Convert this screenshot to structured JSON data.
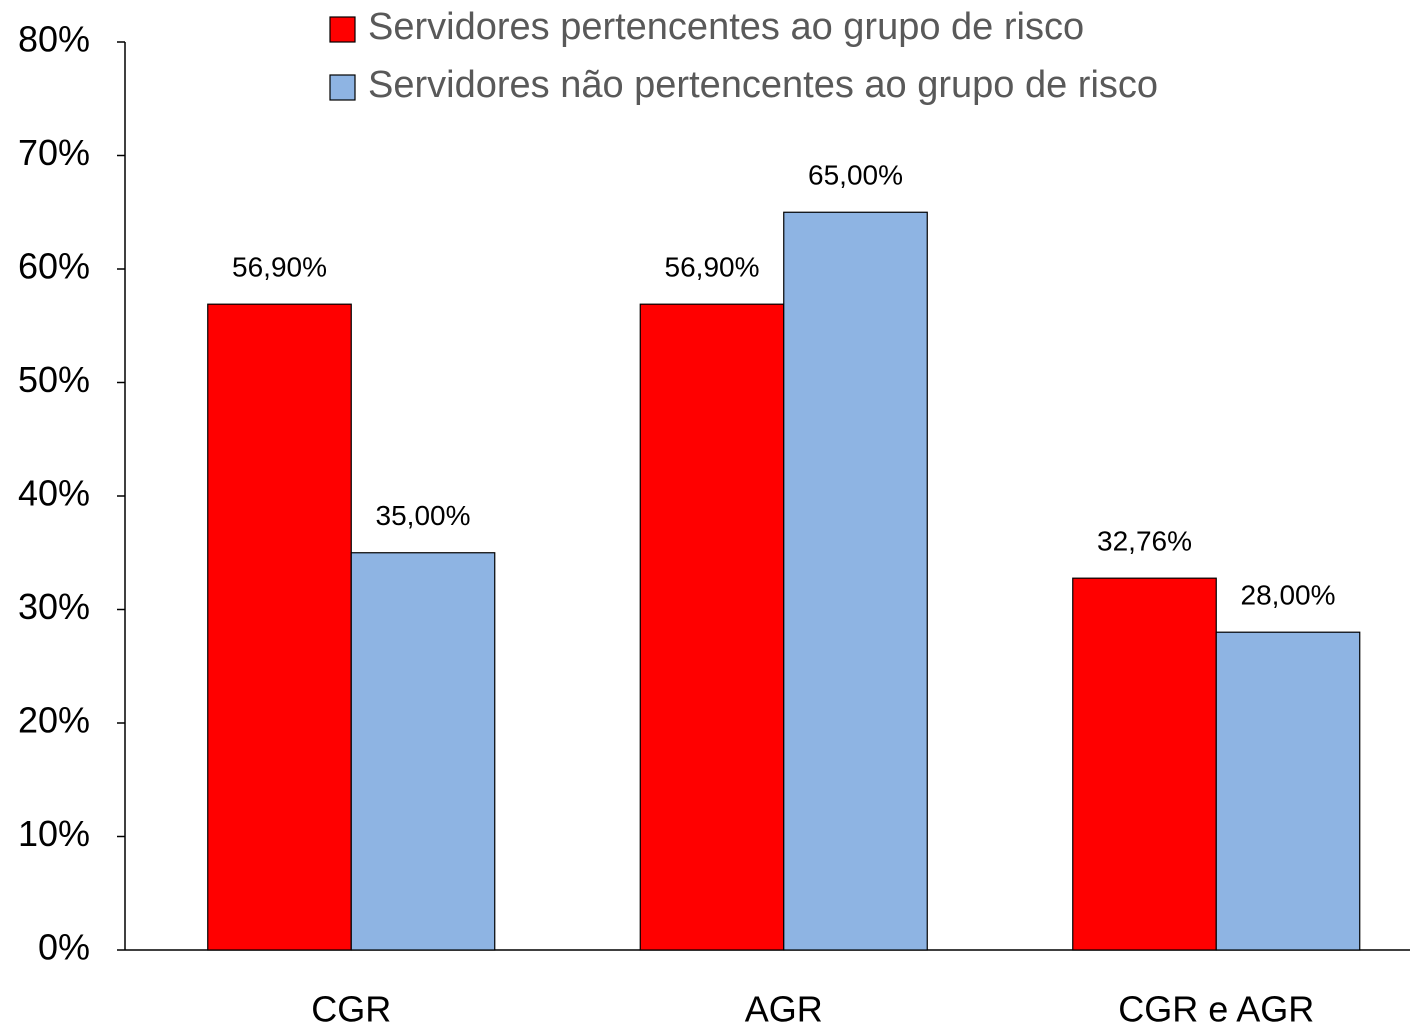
{
  "chart_data": {
    "type": "bar",
    "categories": [
      "CGR",
      "AGR",
      "CGR e AGR"
    ],
    "series": [
      {
        "name": "Servidores pertencentes ao grupo de risco",
        "color": "#ff0000",
        "values": [
          56.9,
          56.9,
          32.76
        ],
        "value_labels": [
          "56,90%",
          "56,90%",
          "32,76%"
        ]
      },
      {
        "name": "Servidores não pertencentes ao grupo de risco",
        "color": "#8eb4e3",
        "values": [
          35,
          65,
          28
        ],
        "value_labels": [
          "35,00%",
          "65,00%",
          "28,00%"
        ]
      }
    ],
    "ylim": [
      0,
      80
    ],
    "yticks": [
      {
        "value": 0,
        "label": "0%"
      },
      {
        "value": 10,
        "label": "10%"
      },
      {
        "value": 20,
        "label": "20%"
      },
      {
        "value": 30,
        "label": "30%"
      },
      {
        "value": 40,
        "label": "40%"
      },
      {
        "value": 50,
        "label": "50%"
      },
      {
        "value": 60,
        "label": "60%"
      },
      {
        "value": 70,
        "label": "70%"
      },
      {
        "value": 80,
        "label": "80%"
      }
    ],
    "grid": false,
    "legend": "top"
  }
}
